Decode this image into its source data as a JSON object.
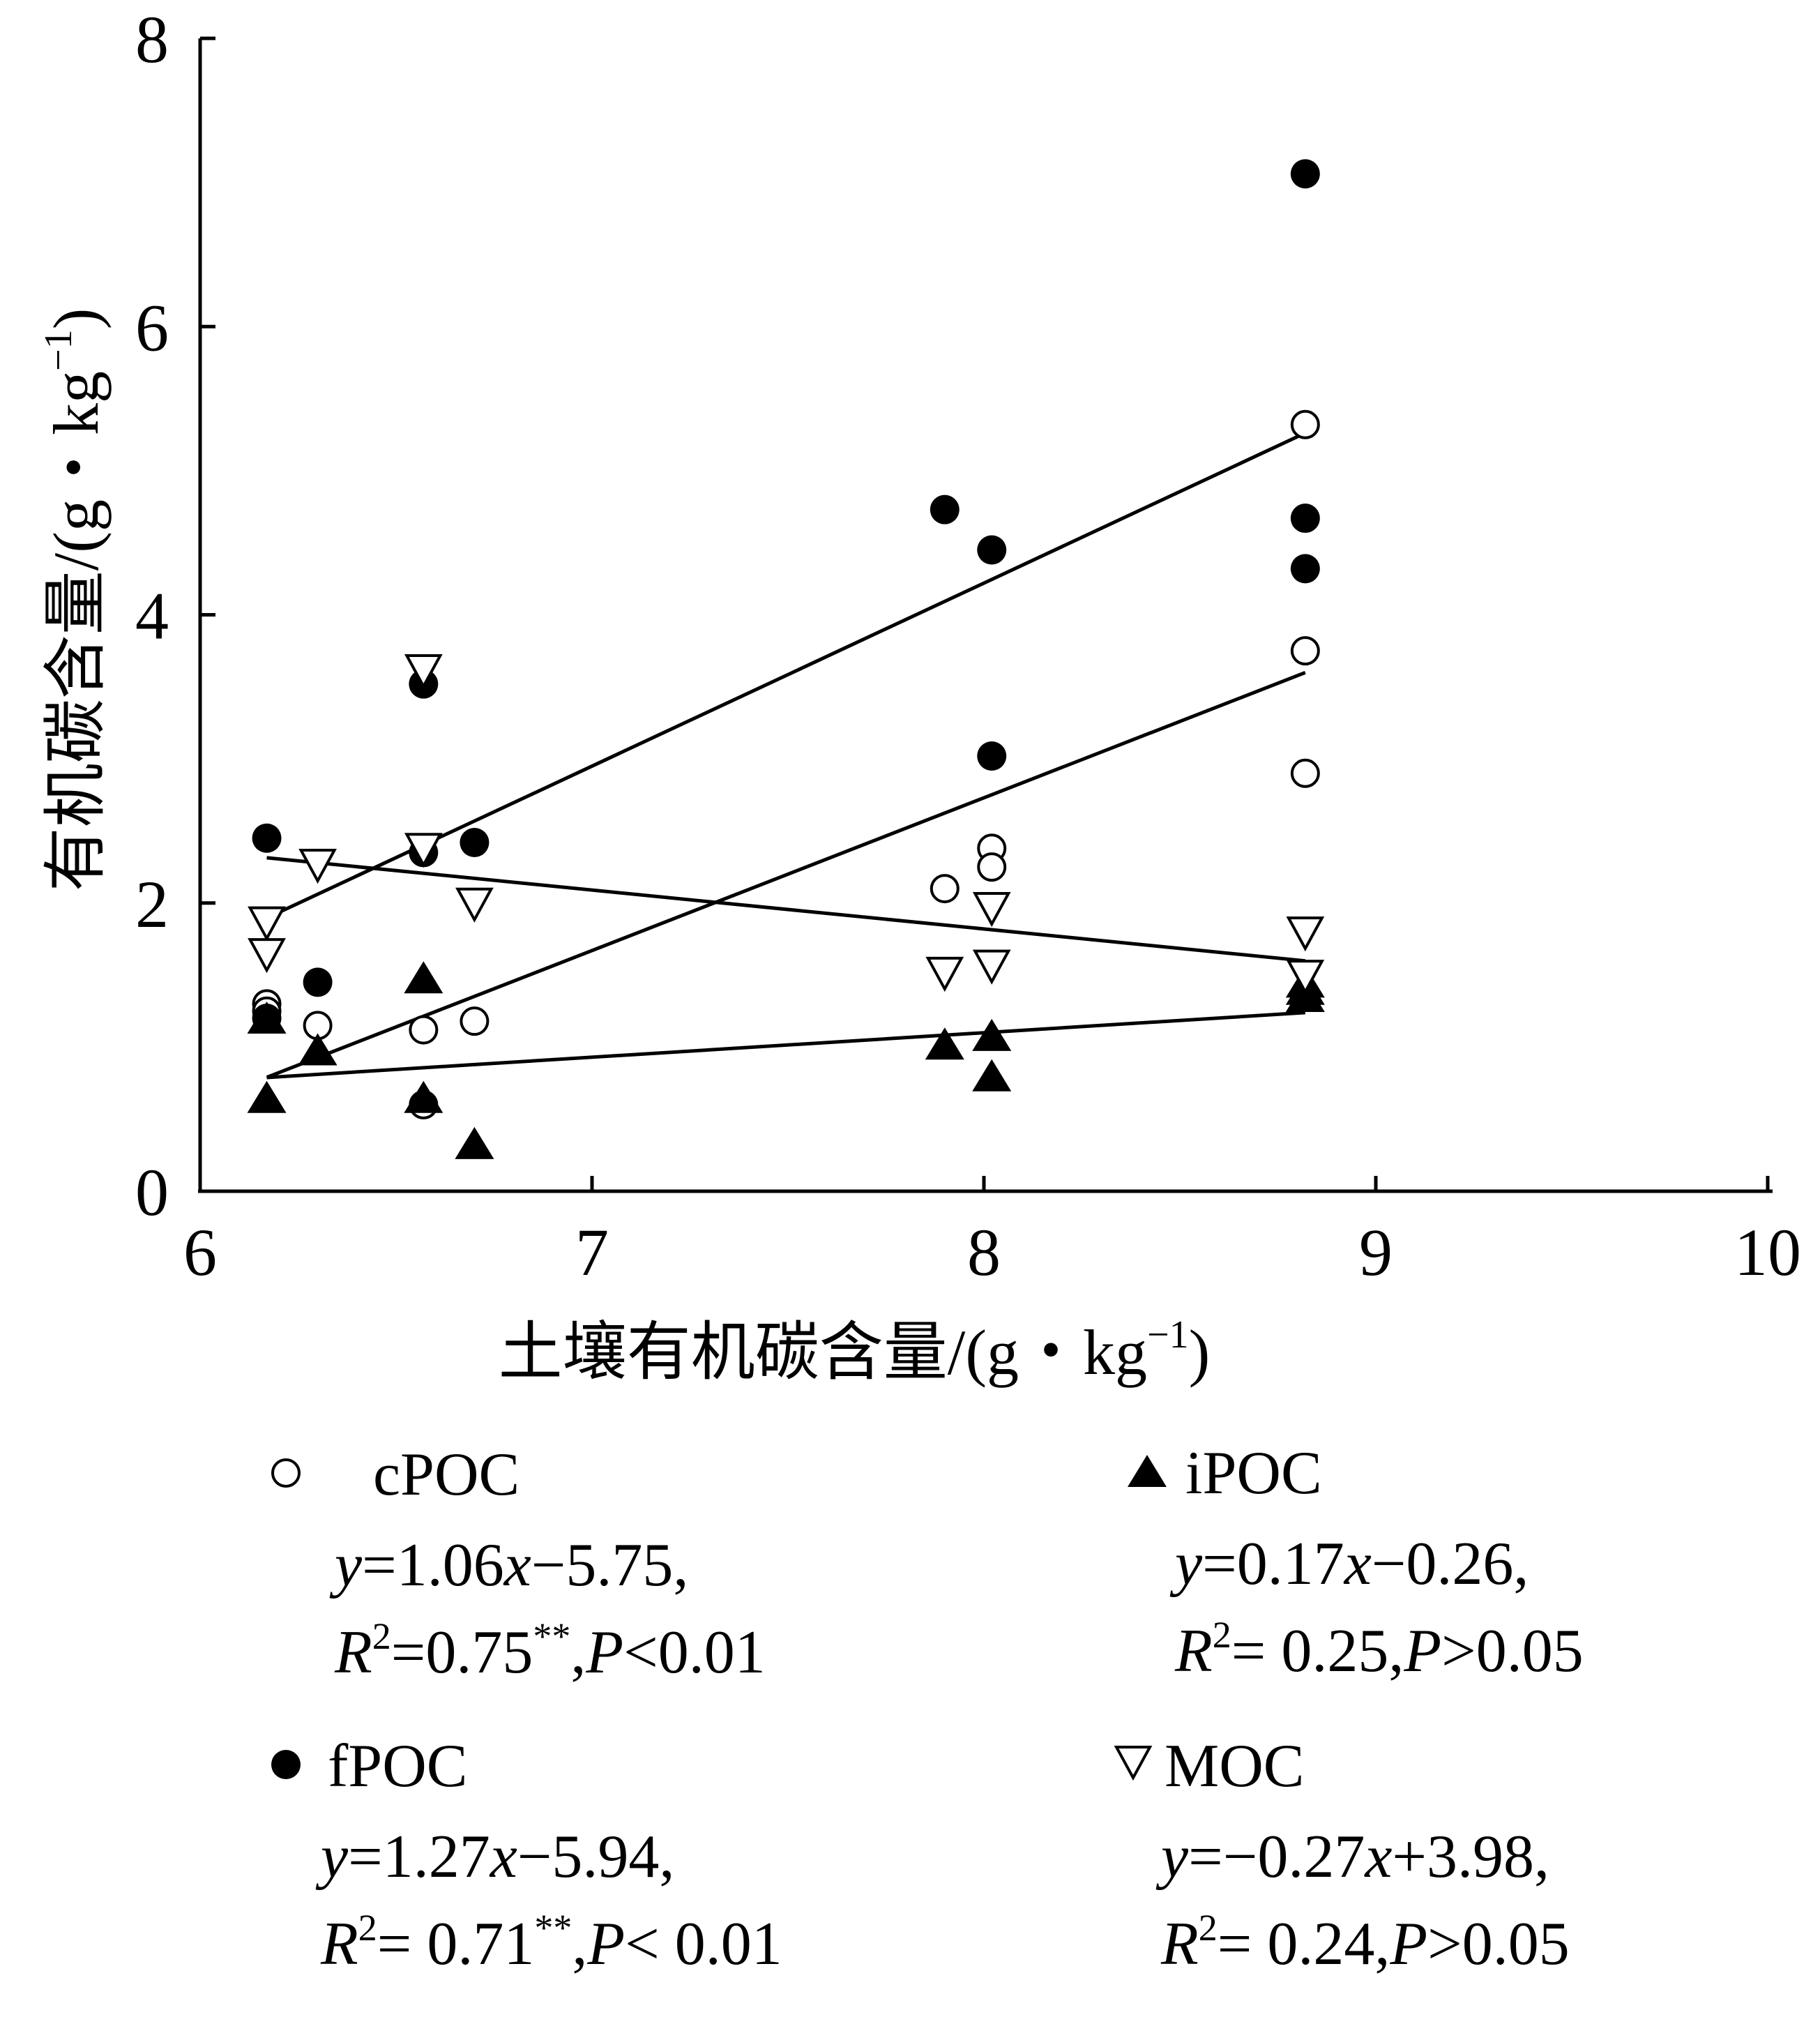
{
  "chart_data": {
    "type": "scatter",
    "xlabel": "土壤有机碳含量/(g・kg",
    "xlabel_sup": "−1",
    "xlabel_close": ")",
    "ylabel": "有机碳含量/(g・kg",
    "ylabel_sup": "−1",
    "ylabel_close": ")",
    "xlim": [
      6,
      10
    ],
    "ylim": [
      0,
      8
    ],
    "xticks": [
      "6",
      "7",
      "8",
      "9",
      "10"
    ],
    "yticks": [
      "0",
      "2",
      "4",
      "6",
      "8"
    ],
    "grid": false,
    "legend_position": "bottom",
    "series": [
      {
        "name": "cPOC",
        "marker": "open-circle",
        "x": [
          6.17,
          6.17,
          6.3,
          6.57,
          6.57,
          6.7,
          7.9,
          8.02,
          8.02,
          8.82,
          8.82,
          8.82
        ],
        "y": [
          1.3,
          1.25,
          1.15,
          1.12,
          0.6,
          1.18,
          2.1,
          2.38,
          2.25,
          5.32,
          3.75,
          2.9
        ],
        "fit": {
          "slope": 1.06,
          "intercept": -5.75,
          "xrange": [
            6.17,
            8.82
          ]
        },
        "equation": {
          "y": "y",
          "rest": "=1.06",
          "x": "x",
          "tail": "−5.75,"
        },
        "stats": {
          "R": "R",
          "sup": "2",
          "val": "=0.75",
          "star": "**",
          "sep": ",",
          "P": "P",
          "cond": "<0.01"
        }
      },
      {
        "name": "fPOC",
        "marker": "filled-circle",
        "x": [
          6.17,
          6.17,
          6.3,
          6.57,
          6.57,
          6.7,
          7.9,
          8.02,
          8.02,
          8.82,
          8.82,
          8.82
        ],
        "y": [
          2.45,
          1.2,
          1.45,
          3.52,
          2.35,
          2.42,
          4.73,
          4.45,
          3.02,
          7.06,
          4.67,
          4.32
        ],
        "fit": {
          "slope": 1.27,
          "intercept": -5.94,
          "xrange": [
            6.17,
            8.82
          ]
        },
        "equation": {
          "y": "y",
          "rest": "=1.27",
          "x": "x",
          "tail": "−5.94,"
        },
        "stats": {
          "R": "R",
          "sup": "2",
          "val": "= 0.71",
          "star": "**",
          "sep": ",",
          "P": "P",
          "cond": "< 0.01"
        }
      },
      {
        "name": "iPOC",
        "marker": "filled-triangle-up",
        "x": [
          6.17,
          6.17,
          6.3,
          6.57,
          6.57,
          6.7,
          7.9,
          8.02,
          8.02,
          8.82,
          8.82,
          8.82
        ],
        "y": [
          0.65,
          1.2,
          0.98,
          1.48,
          0.65,
          0.33,
          1.02,
          1.08,
          0.8,
          1.45,
          1.4,
          1.35
        ],
        "fit": {
          "slope": 0.17,
          "intercept": -0.26,
          "xrange": [
            6.17,
            8.82
          ]
        },
        "equation": {
          "y": "y",
          "rest": "=0.17",
          "x": "x",
          "tail": "−0.26,"
        },
        "stats": {
          "R": "R",
          "sup": "2",
          "val": "= 0.25",
          "star": "",
          "sep": ",",
          "P": "P",
          "cond": ">0.05"
        }
      },
      {
        "name": "MOC",
        "marker": "open-triangle-down",
        "x": [
          6.17,
          6.17,
          6.3,
          6.57,
          6.57,
          6.7,
          7.9,
          8.02,
          8.02,
          8.82,
          8.82
        ],
        "y": [
          1.87,
          1.65,
          2.27,
          3.62,
          2.38,
          2.0,
          1.52,
          1.97,
          1.57,
          1.8,
          1.5
        ],
        "fit": {
          "slope": -0.27,
          "intercept": 3.98,
          "xrange": [
            6.17,
            8.82
          ]
        },
        "equation": {
          "y": "y",
          "rest": "=−0.27",
          "x": "x",
          "tail": "+3.98,"
        },
        "stats": {
          "R": "R",
          "sup": "2",
          "val": "= 0.24",
          "star": "",
          "sep": ",",
          "P": "P",
          "cond": ">0.05"
        }
      }
    ]
  }
}
